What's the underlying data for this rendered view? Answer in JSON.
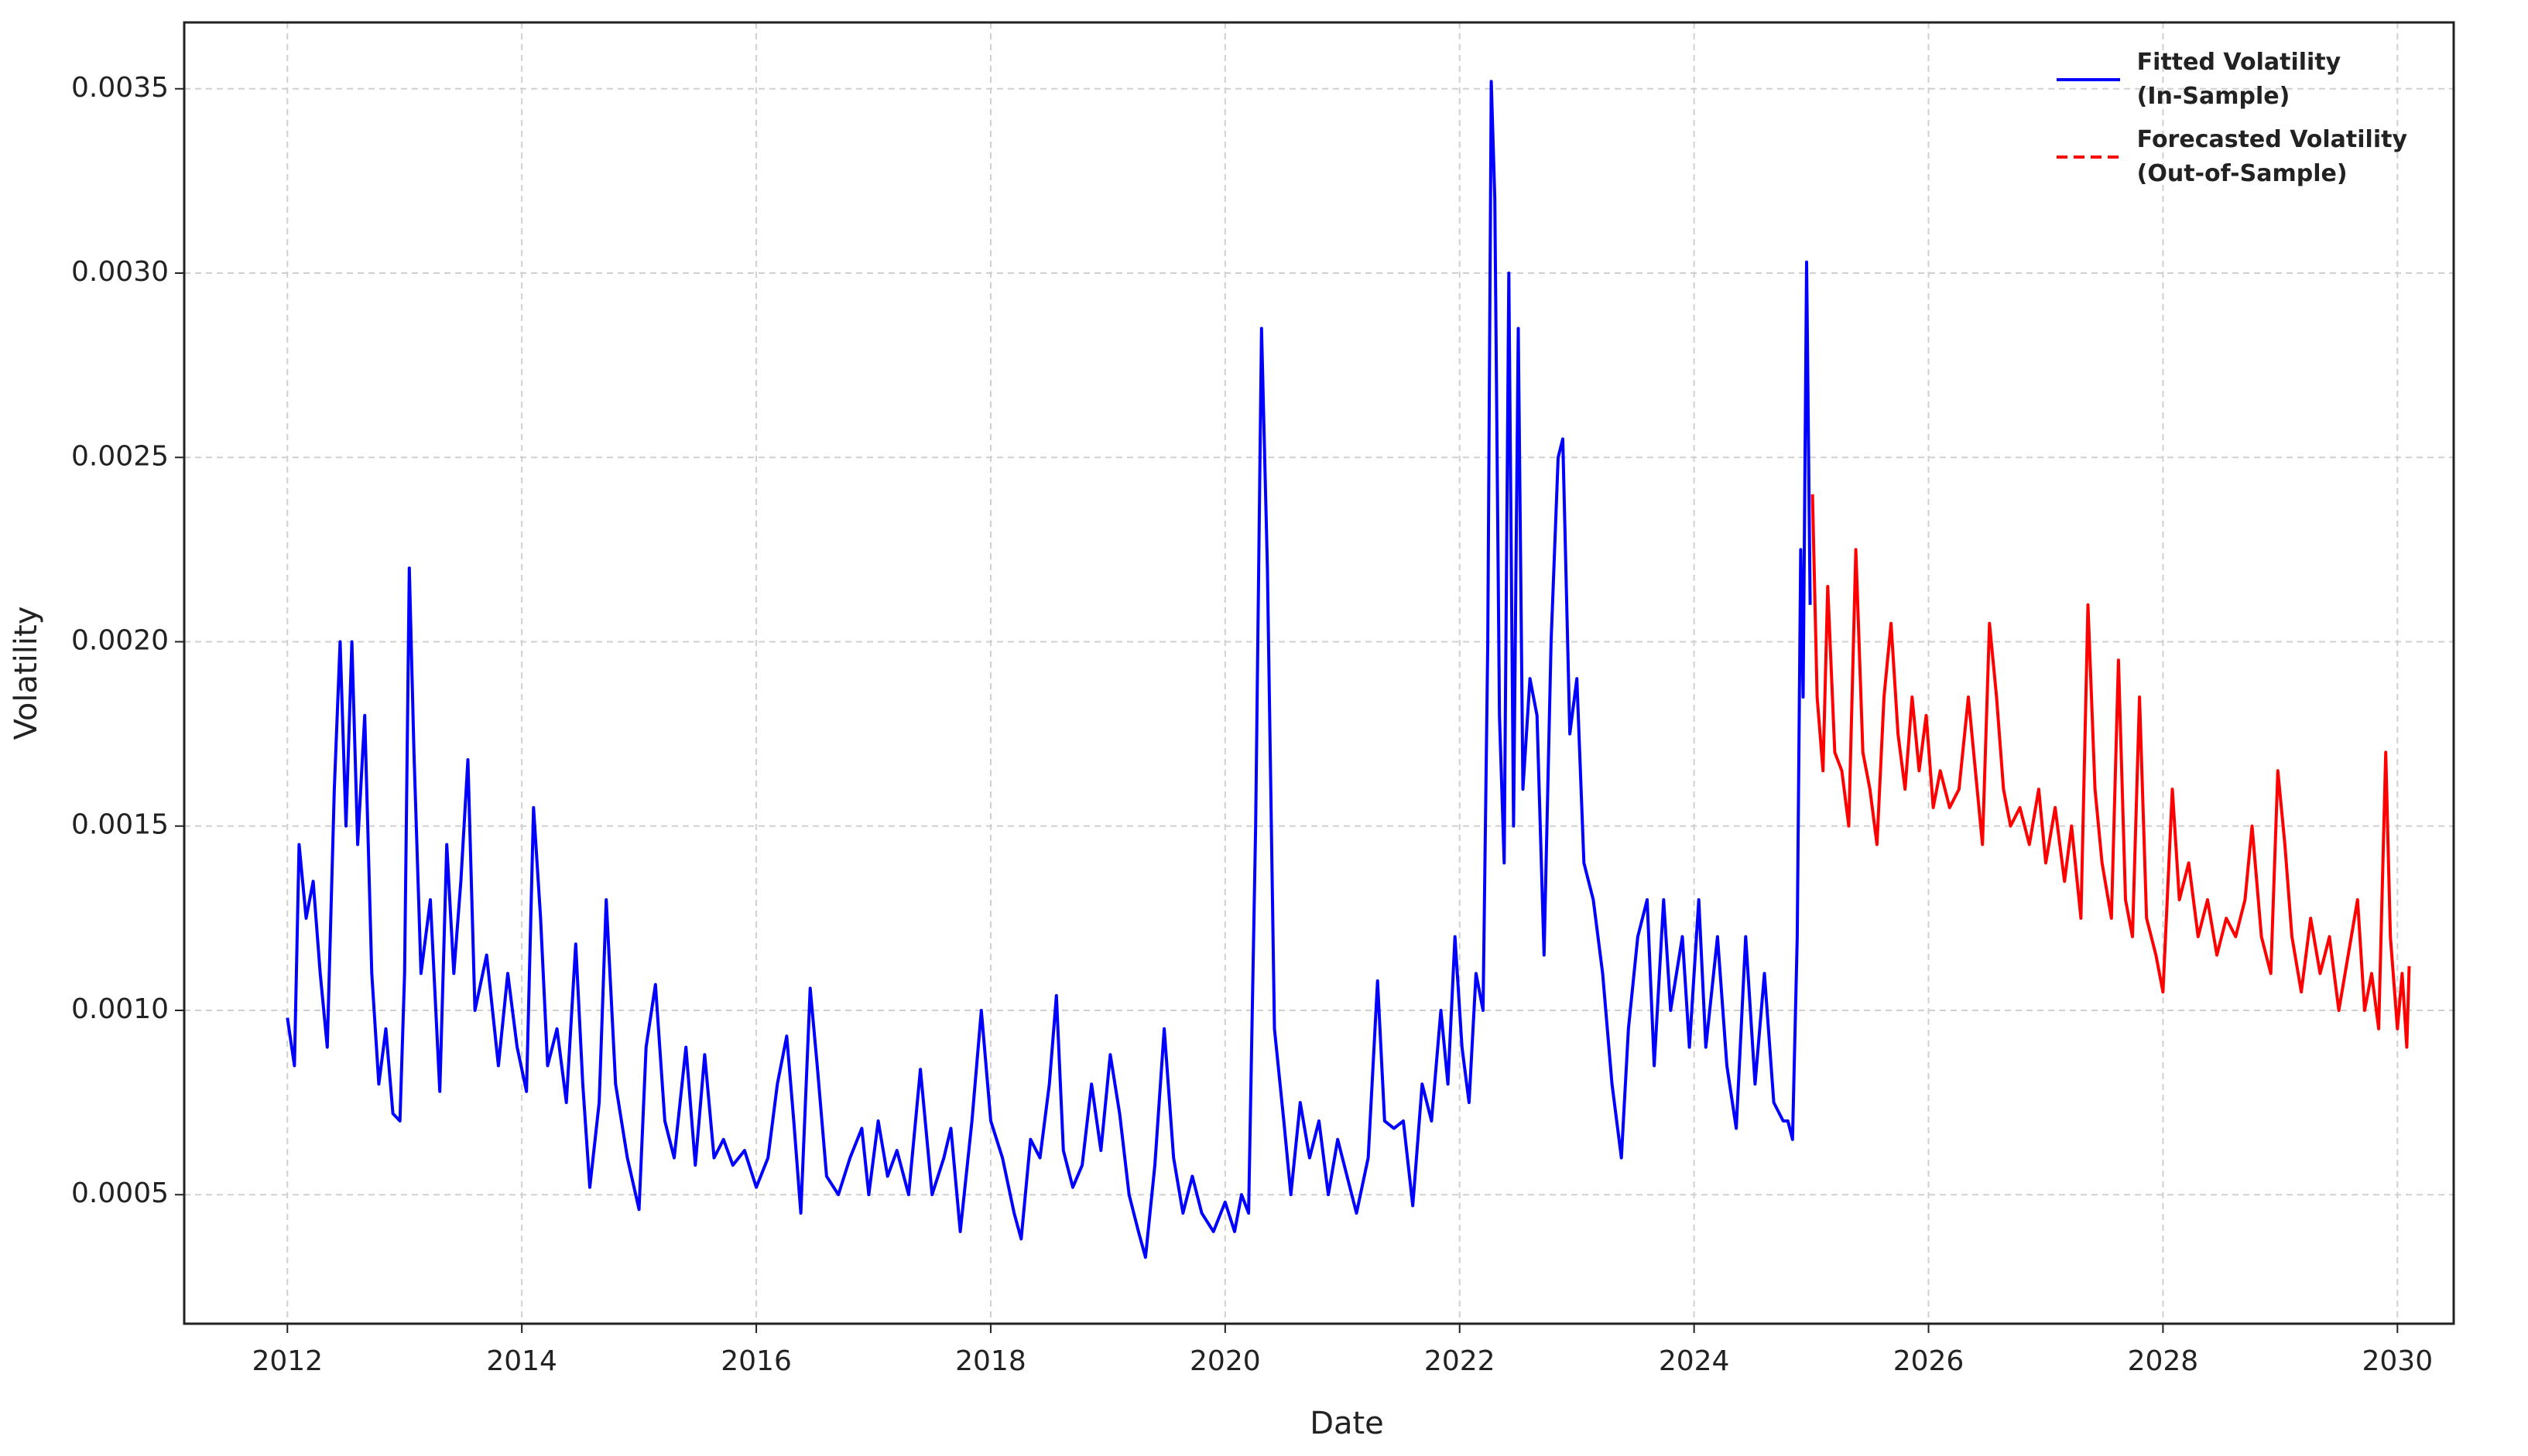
{
  "chart_data": {
    "type": "line",
    "xlabel": "Date",
    "ylabel": "Volatility",
    "xlim": [
      2011.12,
      2030.48
    ],
    "ylim": [
      0.00015,
      0.00368
    ],
    "xticks": [
      2012,
      2014,
      2016,
      2018,
      2020,
      2022,
      2024,
      2026,
      2028,
      2030
    ],
    "yticks": [
      0.0005,
      {
        "value": 0.001,
        "label": "0.0010"
      },
      0.0015,
      {
        "value": 0.002,
        "label": "0.0020"
      },
      0.0025,
      {
        "value": 0.003,
        "label": "0.0030"
      },
      0.0035
    ],
    "grid": true,
    "legend": "upper right",
    "series": [
      {
        "name": "Fitted Volatility\n(In-Sample)",
        "color": "#0000ff",
        "linestyle": "solid",
        "x": [
          2012.0,
          2012.06,
          2012.1,
          2012.16,
          2012.22,
          2012.28,
          2012.34,
          2012.4,
          2012.45,
          2012.5,
          2012.55,
          2012.6,
          2012.66,
          2012.72,
          2012.78,
          2012.84,
          2012.9,
          2012.96,
          2013.0,
          2013.04,
          2013.08,
          2013.14,
          2013.22,
          2013.3,
          2013.36,
          2013.42,
          2013.48,
          2013.54,
          2013.6,
          2013.7,
          2013.8,
          2013.88,
          2013.96,
          2014.04,
          2014.1,
          2014.16,
          2014.22,
          2014.3,
          2014.38,
          2014.46,
          2014.52,
          2014.58,
          2014.66,
          2014.72,
          2014.8,
          2014.9,
          2015.0,
          2015.06,
          2015.14,
          2015.22,
          2015.3,
          2015.4,
          2015.48,
          2015.56,
          2015.64,
          2015.72,
          2015.8,
          2015.9,
          2016.0,
          2016.1,
          2016.18,
          2016.26,
          2016.32,
          2016.38,
          2016.46,
          2016.52,
          2016.6,
          2016.7,
          2016.8,
          2016.9,
          2016.96,
          2017.04,
          2017.12,
          2017.2,
          2017.3,
          2017.4,
          2017.5,
          2017.6,
          2017.66,
          2017.74,
          2017.84,
          2017.92,
          2018.0,
          2018.1,
          2018.2,
          2018.26,
          2018.34,
          2018.42,
          2018.5,
          2018.56,
          2018.62,
          2018.7,
          2018.78,
          2018.86,
          2018.94,
          2019.02,
          2019.1,
          2019.18,
          2019.26,
          2019.32,
          2019.4,
          2019.48,
          2019.56,
          2019.64,
          2019.72,
          2019.8,
          2019.9,
          2020.0,
          2020.08,
          2020.14,
          2020.2,
          2020.26,
          2020.31,
          2020.36,
          2020.42,
          2020.5,
          2020.56,
          2020.64,
          2020.72,
          2020.8,
          2020.88,
          2020.96,
          2021.04,
          2021.12,
          2021.22,
          2021.3,
          2021.36,
          2021.44,
          2021.52,
          2021.6,
          2021.68,
          2021.76,
          2021.84,
          2021.9,
          2021.96,
          2022.02,
          2022.08,
          2022.14,
          2022.2,
          2022.24,
          2022.27,
          2022.3,
          2022.34,
          2022.38,
          2022.42,
          2022.46,
          2022.5,
          2022.54,
          2022.6,
          2022.66,
          2022.72,
          2022.78,
          2022.84,
          2022.88,
          2022.94,
          2023.0,
          2023.06,
          2023.14,
          2023.22,
          2023.3,
          2023.38,
          2023.44,
          2023.52,
          2023.6,
          2023.66,
          2023.74,
          2023.8,
          2023.9,
          2023.96,
          2024.04,
          2024.1,
          2024.2,
          2024.28,
          2024.36,
          2024.44,
          2024.52,
          2024.6,
          2024.68,
          2024.76,
          2024.8,
          2024.84,
          2024.88,
          2024.91,
          2024.93,
          2024.96,
          2024.99
        ],
        "values": [
          0.00098,
          0.00085,
          0.00145,
          0.00125,
          0.00135,
          0.0011,
          0.0009,
          0.0016,
          0.002,
          0.0015,
          0.002,
          0.00145,
          0.0018,
          0.0011,
          0.0008,
          0.00095,
          0.00072,
          0.0007,
          0.0011,
          0.0022,
          0.0017,
          0.0011,
          0.0013,
          0.00078,
          0.00145,
          0.0011,
          0.00135,
          0.00168,
          0.001,
          0.00115,
          0.00085,
          0.0011,
          0.0009,
          0.00078,
          0.00155,
          0.00125,
          0.00085,
          0.00095,
          0.00075,
          0.00118,
          0.0008,
          0.00052,
          0.00075,
          0.0013,
          0.0008,
          0.0006,
          0.00046,
          0.0009,
          0.00107,
          0.0007,
          0.0006,
          0.0009,
          0.00058,
          0.00088,
          0.0006,
          0.00065,
          0.00058,
          0.00062,
          0.00052,
          0.0006,
          0.0008,
          0.00093,
          0.0007,
          0.00045,
          0.00106,
          0.00085,
          0.00055,
          0.0005,
          0.0006,
          0.00068,
          0.0005,
          0.0007,
          0.00055,
          0.00062,
          0.0005,
          0.00084,
          0.0005,
          0.0006,
          0.00068,
          0.0004,
          0.0007,
          0.001,
          0.0007,
          0.0006,
          0.00045,
          0.00038,
          0.00065,
          0.0006,
          0.0008,
          0.00104,
          0.00062,
          0.00052,
          0.00058,
          0.0008,
          0.00062,
          0.00088,
          0.00072,
          0.0005,
          0.0004,
          0.00033,
          0.00058,
          0.00095,
          0.0006,
          0.00045,
          0.00055,
          0.00045,
          0.0004,
          0.00048,
          0.0004,
          0.0005,
          0.00045,
          0.0015,
          0.00285,
          0.0022,
          0.00095,
          0.0007,
          0.0005,
          0.00075,
          0.0006,
          0.0007,
          0.0005,
          0.00065,
          0.00055,
          0.00045,
          0.0006,
          0.00108,
          0.0007,
          0.00068,
          0.0007,
          0.00047,
          0.0008,
          0.0007,
          0.001,
          0.0008,
          0.0012,
          0.0009,
          0.00075,
          0.0011,
          0.001,
          0.002,
          0.00352,
          0.0032,
          0.0018,
          0.0014,
          0.003,
          0.0015,
          0.00285,
          0.0016,
          0.0019,
          0.0018,
          0.00115,
          0.002,
          0.0025,
          0.00255,
          0.00175,
          0.0019,
          0.0014,
          0.0013,
          0.0011,
          0.0008,
          0.0006,
          0.00095,
          0.0012,
          0.0013,
          0.00085,
          0.0013,
          0.001,
          0.0012,
          0.0009,
          0.0013,
          0.0009,
          0.0012,
          0.00085,
          0.00068,
          0.0012,
          0.0008,
          0.0011,
          0.00075,
          0.0007,
          0.0007,
          0.00065,
          0.0012,
          0.00225,
          0.00185,
          0.00303,
          0.0021
        ]
      },
      {
        "name": "Forecasted Volatility\n(Out-of-Sample)",
        "color": "#ff0000",
        "linestyle": "dashed",
        "x": [
          2025.01,
          2025.05,
          2025.1,
          2025.14,
          2025.2,
          2025.26,
          2025.32,
          2025.38,
          2025.44,
          2025.5,
          2025.56,
          2025.62,
          2025.68,
          2025.74,
          2025.8,
          2025.86,
          2025.92,
          2025.98,
          2026.04,
          2026.1,
          2026.18,
          2026.26,
          2026.34,
          2026.4,
          2026.46,
          2026.52,
          2026.58,
          2026.64,
          2026.7,
          2026.78,
          2026.86,
          2026.94,
          2027.0,
          2027.08,
          2027.16,
          2027.22,
          2027.3,
          2027.36,
          2027.42,
          2027.48,
          2027.56,
          2027.62,
          2027.68,
          2027.74,
          2027.8,
          2027.86,
          2027.94,
          2028.0,
          2028.08,
          2028.14,
          2028.22,
          2028.3,
          2028.38,
          2028.46,
          2028.54,
          2028.62,
          2028.7,
          2028.76,
          2028.84,
          2028.92,
          2028.98,
          2029.04,
          2029.1,
          2029.18,
          2029.26,
          2029.34,
          2029.42,
          2029.5,
          2029.58,
          2029.66,
          2029.72,
          2029.78,
          2029.84,
          2029.9,
          2029.94,
          2030.0,
          2030.04,
          2030.08,
          2030.1
        ],
        "values": [
          0.0024,
          0.00185,
          0.00165,
          0.00215,
          0.0017,
          0.00165,
          0.0015,
          0.00225,
          0.0017,
          0.0016,
          0.00145,
          0.00185,
          0.00205,
          0.00175,
          0.0016,
          0.00185,
          0.00165,
          0.0018,
          0.00155,
          0.00165,
          0.00155,
          0.0016,
          0.00185,
          0.00165,
          0.00145,
          0.00205,
          0.00185,
          0.0016,
          0.0015,
          0.00155,
          0.00145,
          0.0016,
          0.0014,
          0.00155,
          0.00135,
          0.0015,
          0.00125,
          0.0021,
          0.0016,
          0.0014,
          0.00125,
          0.00195,
          0.0013,
          0.0012,
          0.00185,
          0.00125,
          0.00115,
          0.00105,
          0.0016,
          0.0013,
          0.0014,
          0.0012,
          0.0013,
          0.00115,
          0.00125,
          0.0012,
          0.0013,
          0.0015,
          0.0012,
          0.0011,
          0.00165,
          0.00145,
          0.0012,
          0.00105,
          0.00125,
          0.0011,
          0.0012,
          0.001,
          0.00115,
          0.0013,
          0.001,
          0.0011,
          0.00095,
          0.0017,
          0.0012,
          0.00095,
          0.0011,
          0.0009,
          0.00112
        ]
      }
    ]
  }
}
